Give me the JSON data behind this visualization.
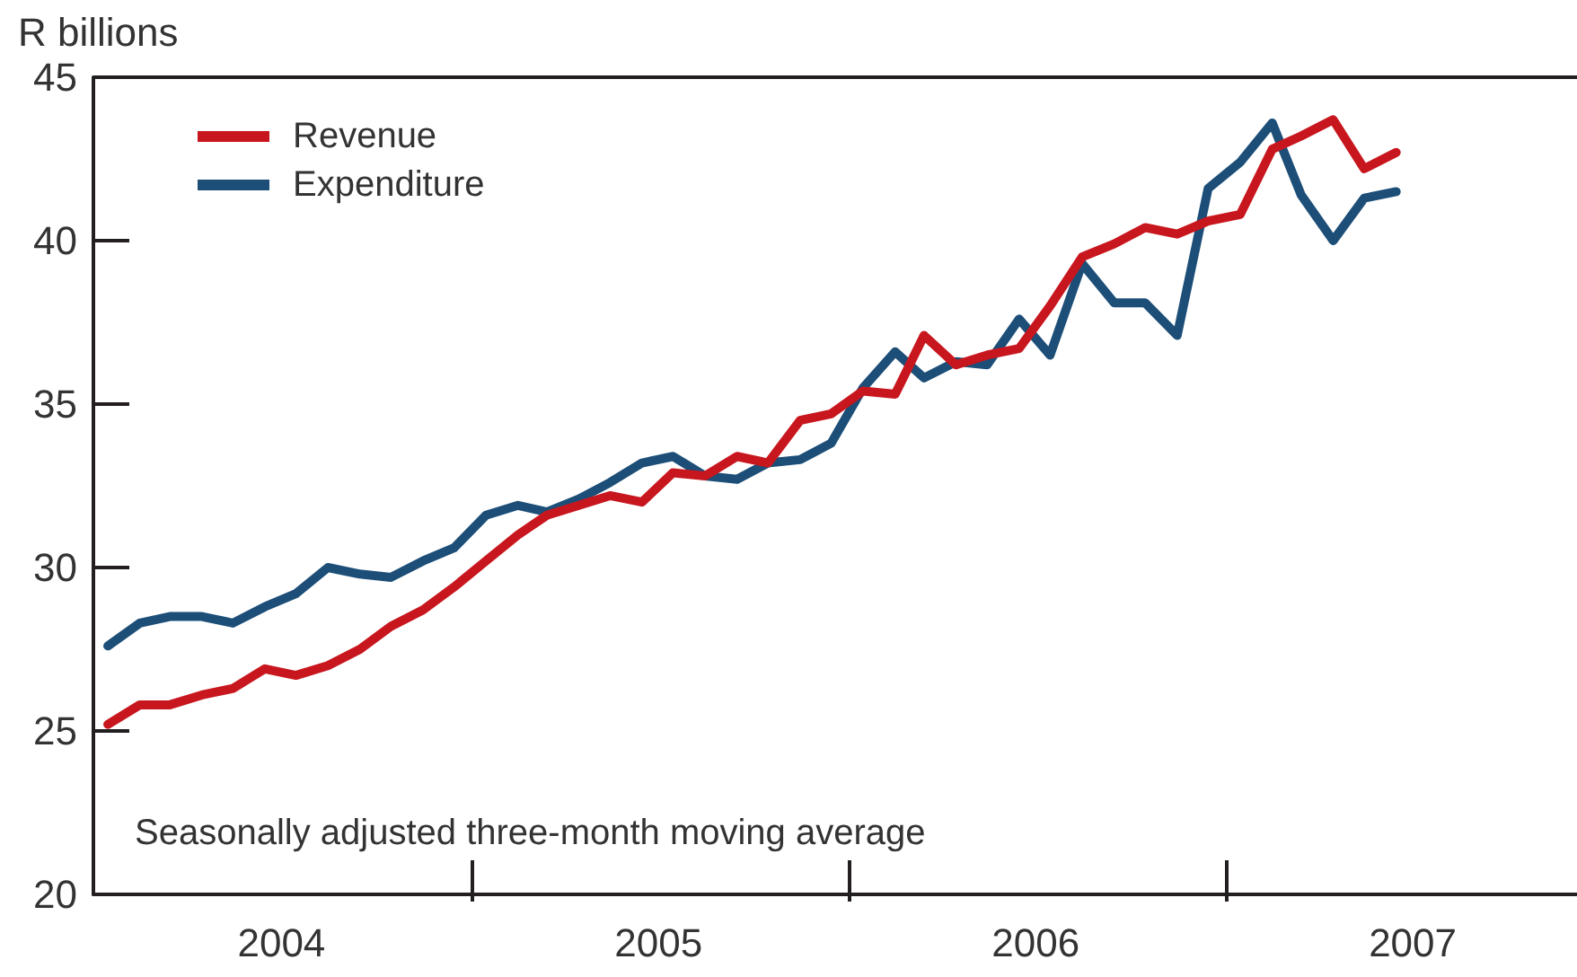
{
  "chart_data": {
    "type": "line",
    "ylabel": "R billions",
    "annotations": [
      "Seasonally adjusted three-month moving average"
    ],
    "x": [
      "2004-01-15",
      "2004-02-15",
      "2004-03-15",
      "2004-04-15",
      "2004-05-15",
      "2004-06-15",
      "2004-07-15",
      "2004-08-15",
      "2004-09-15",
      "2004-10-15",
      "2004-11-15",
      "2004-12-15",
      "2005-01-15",
      "2005-02-15",
      "2005-03-15",
      "2005-04-15",
      "2005-05-15",
      "2005-06-15",
      "2005-07-15",
      "2005-08-15",
      "2005-09-15",
      "2005-10-15",
      "2005-11-15",
      "2005-12-15",
      "2006-01-15",
      "2006-02-15",
      "2006-03-15",
      "2006-04-15",
      "2006-05-15",
      "2006-06-15",
      "2006-07-15",
      "2006-08-15",
      "2006-09-15",
      "2006-10-15",
      "2006-11-15",
      "2006-12-15",
      "2007-01-15",
      "2007-02-15",
      "2007-03-15",
      "2007-04-15",
      "2007-05-15",
      "2007-06-15"
    ],
    "series": [
      {
        "name": "Revenue",
        "color": "#c8161e",
        "values": [
          25.2,
          25.8,
          25.8,
          26.1,
          26.3,
          26.9,
          26.7,
          27.0,
          27.5,
          28.2,
          28.7,
          29.4,
          30.2,
          31.0,
          31.6,
          31.9,
          32.2,
          32.0,
          32.9,
          32.8,
          33.4,
          33.2,
          34.5,
          34.7,
          35.4,
          35.3,
          37.1,
          36.2,
          36.5,
          36.7,
          38.0,
          39.5,
          39.9,
          40.4,
          40.2,
          40.6,
          40.8,
          42.8,
          43.2,
          43.7,
          42.2,
          42.7
        ]
      },
      {
        "name": "Expenditure",
        "color": "#1c4e78",
        "values": [
          27.6,
          28.3,
          28.5,
          28.5,
          28.3,
          28.8,
          29.2,
          30.0,
          29.8,
          29.7,
          30.2,
          30.6,
          31.6,
          31.9,
          31.7,
          32.1,
          32.6,
          33.2,
          33.4,
          32.8,
          32.7,
          33.2,
          33.3,
          33.8,
          35.5,
          36.6,
          35.8,
          36.3,
          36.2,
          37.6,
          36.5,
          39.3,
          38.1,
          38.1,
          37.1,
          41.6,
          42.4,
          43.6,
          41.4,
          40.0,
          41.3,
          41.5
        ]
      }
    ],
    "xlim": [
      "2004-01-01",
      "2007-12-07"
    ],
    "xticks": [
      {
        "value": "2004-07-01",
        "label": "2004"
      },
      {
        "value": "2005-01-01",
        "label": null
      },
      {
        "value": "2005-07-01",
        "label": "2005"
      },
      {
        "value": "2006-01-01",
        "label": null
      },
      {
        "value": "2006-07-01",
        "label": "2006"
      },
      {
        "value": "2007-01-01",
        "label": null
      },
      {
        "value": "2007-07-01",
        "label": "2007"
      }
    ],
    "ylim": [
      20,
      45
    ],
    "yticks": [
      20,
      25,
      30,
      35,
      40,
      45
    ],
    "grid": false,
    "legend": "top left"
  }
}
